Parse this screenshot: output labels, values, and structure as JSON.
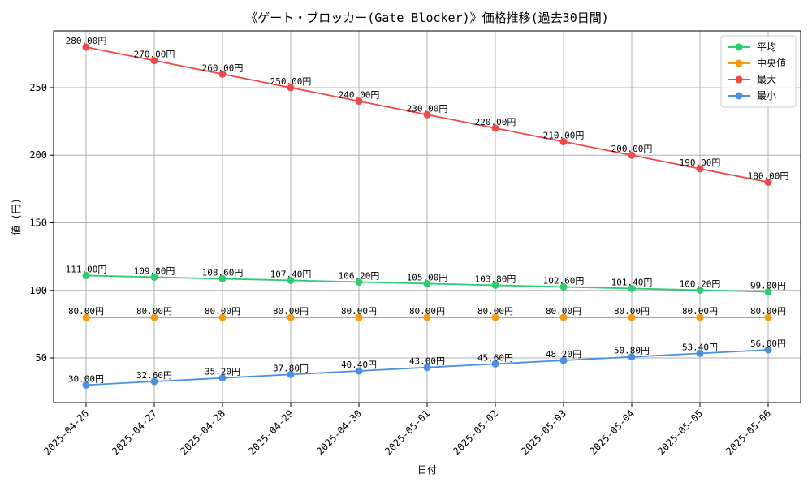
{
  "chart_data": {
    "type": "line",
    "title": "《ゲート・ブロッカー(Gate Blocker)》価格推移(過去30日間)",
    "xlabel": "日付",
    "ylabel": "値 (円)",
    "x": [
      "2025-04-26",
      "2025-04-27",
      "2025-04-28",
      "2025-04-29",
      "2025-04-30",
      "2025-05-01",
      "2025-05-02",
      "2025-05-03",
      "2025-05-04",
      "2025-05-05",
      "2025-05-06"
    ],
    "ylim": [
      17,
      292
    ],
    "yticks": [
      50,
      100,
      150,
      200,
      250
    ],
    "grid": true,
    "legend_position": "top-right",
    "value_suffix": "円",
    "series": [
      {
        "name": "平均",
        "color": "#2ecc71",
        "values": [
          111.0,
          109.8,
          108.6,
          107.4,
          106.2,
          105.0,
          103.8,
          102.6,
          101.4,
          100.2,
          99.0
        ]
      },
      {
        "name": "中央値",
        "color": "#f39c12",
        "values": [
          80.0,
          80.0,
          80.0,
          80.0,
          80.0,
          80.0,
          80.0,
          80.0,
          80.0,
          80.0,
          80.0
        ]
      },
      {
        "name": "最大",
        "color": "#f04848",
        "values": [
          280.0,
          270.0,
          260.0,
          250.0,
          240.0,
          230.0,
          220.0,
          210.0,
          200.0,
          190.0,
          180.0
        ]
      },
      {
        "name": "最小",
        "color": "#4a90e2",
        "values": [
          30.0,
          32.6,
          35.2,
          37.8,
          40.4,
          43.0,
          45.6,
          48.2,
          50.8,
          53.4,
          56.0
        ]
      }
    ]
  }
}
